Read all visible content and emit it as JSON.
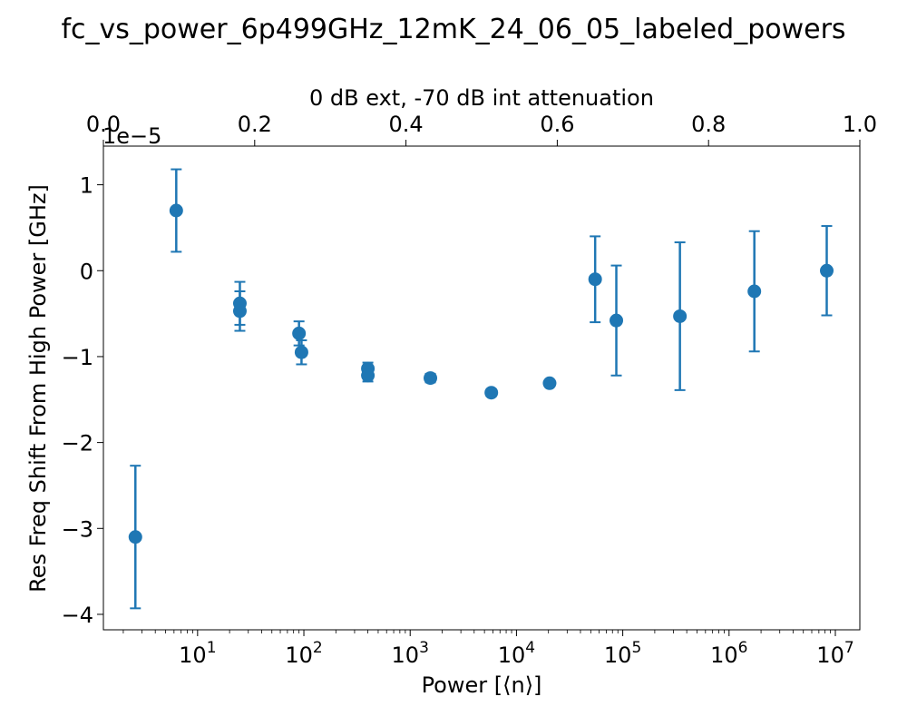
{
  "chart_data": {
    "type": "scatter",
    "title": "fc_vs_power_6p499GHz_12mK_24_06_05_labeled_powers",
    "xlabel": "Power [⟨n⟩]",
    "ylabel": "Res Freq Shift From High Power [GHz]",
    "x_scale": "log",
    "xlim": [
      1.3,
      17000000
    ],
    "ylim": [
      -4.18,
      1.45
    ],
    "y_offset_text": "1e−5",
    "x_ticks": [
      10,
      100,
      1000,
      10000,
      100000,
      1000000,
      10000000
    ],
    "x_tick_labels": [
      {
        "base": "10",
        "exp": "1"
      },
      {
        "base": "10",
        "exp": "2"
      },
      {
        "base": "10",
        "exp": "3"
      },
      {
        "base": "10",
        "exp": "4"
      },
      {
        "base": "10",
        "exp": "5"
      },
      {
        "base": "10",
        "exp": "6"
      },
      {
        "base": "10",
        "exp": "7"
      }
    ],
    "y_ticks": [
      1,
      0,
      -1,
      -2,
      -3,
      -4
    ],
    "y_tick_labels": [
      "1",
      "0",
      "−1",
      "−2",
      "−3",
      "−4"
    ],
    "top_axis": {
      "label": "0 dB ext, -70 dB int attenuation",
      "range": [
        0.0,
        1.0
      ],
      "ticks": [
        0.0,
        0.2,
        0.4,
        0.6,
        0.8,
        1.0
      ],
      "tick_labels": [
        "0.0",
        "0.2",
        "0.4",
        "0.6",
        "0.8",
        "1.0"
      ]
    },
    "color": "#1f77b4",
    "grid": false,
    "series": [
      {
        "points": [
          {
            "x": 2.6,
            "y": -3.1,
            "err": 0.83
          },
          {
            "x": 6.3,
            "y": 0.7,
            "err": 0.48
          },
          {
            "x": 25,
            "y": -0.38,
            "err": 0.25
          },
          {
            "x": 25,
            "y": -0.47,
            "err": 0.23
          },
          {
            "x": 90,
            "y": -0.73,
            "err": 0.14
          },
          {
            "x": 95,
            "y": -0.95,
            "err": 0.14
          },
          {
            "x": 400,
            "y": -1.14,
            "err": 0.07
          },
          {
            "x": 400,
            "y": -1.22,
            "err": 0.07
          },
          {
            "x": 1550,
            "y": -1.25,
            "err": 0.05
          },
          {
            "x": 5800,
            "y": -1.42,
            "err": 0.04
          },
          {
            "x": 20500,
            "y": -1.31,
            "err": 0.03
          },
          {
            "x": 55000,
            "y": -0.1,
            "err": 0.5
          },
          {
            "x": 87000,
            "y": -0.58,
            "err": 0.64
          },
          {
            "x": 345000,
            "y": -0.53,
            "err": 0.86
          },
          {
            "x": 1730000,
            "y": -0.24,
            "err": 0.7
          },
          {
            "x": 8300000,
            "y": 0.0,
            "err": 0.52
          }
        ]
      }
    ]
  }
}
